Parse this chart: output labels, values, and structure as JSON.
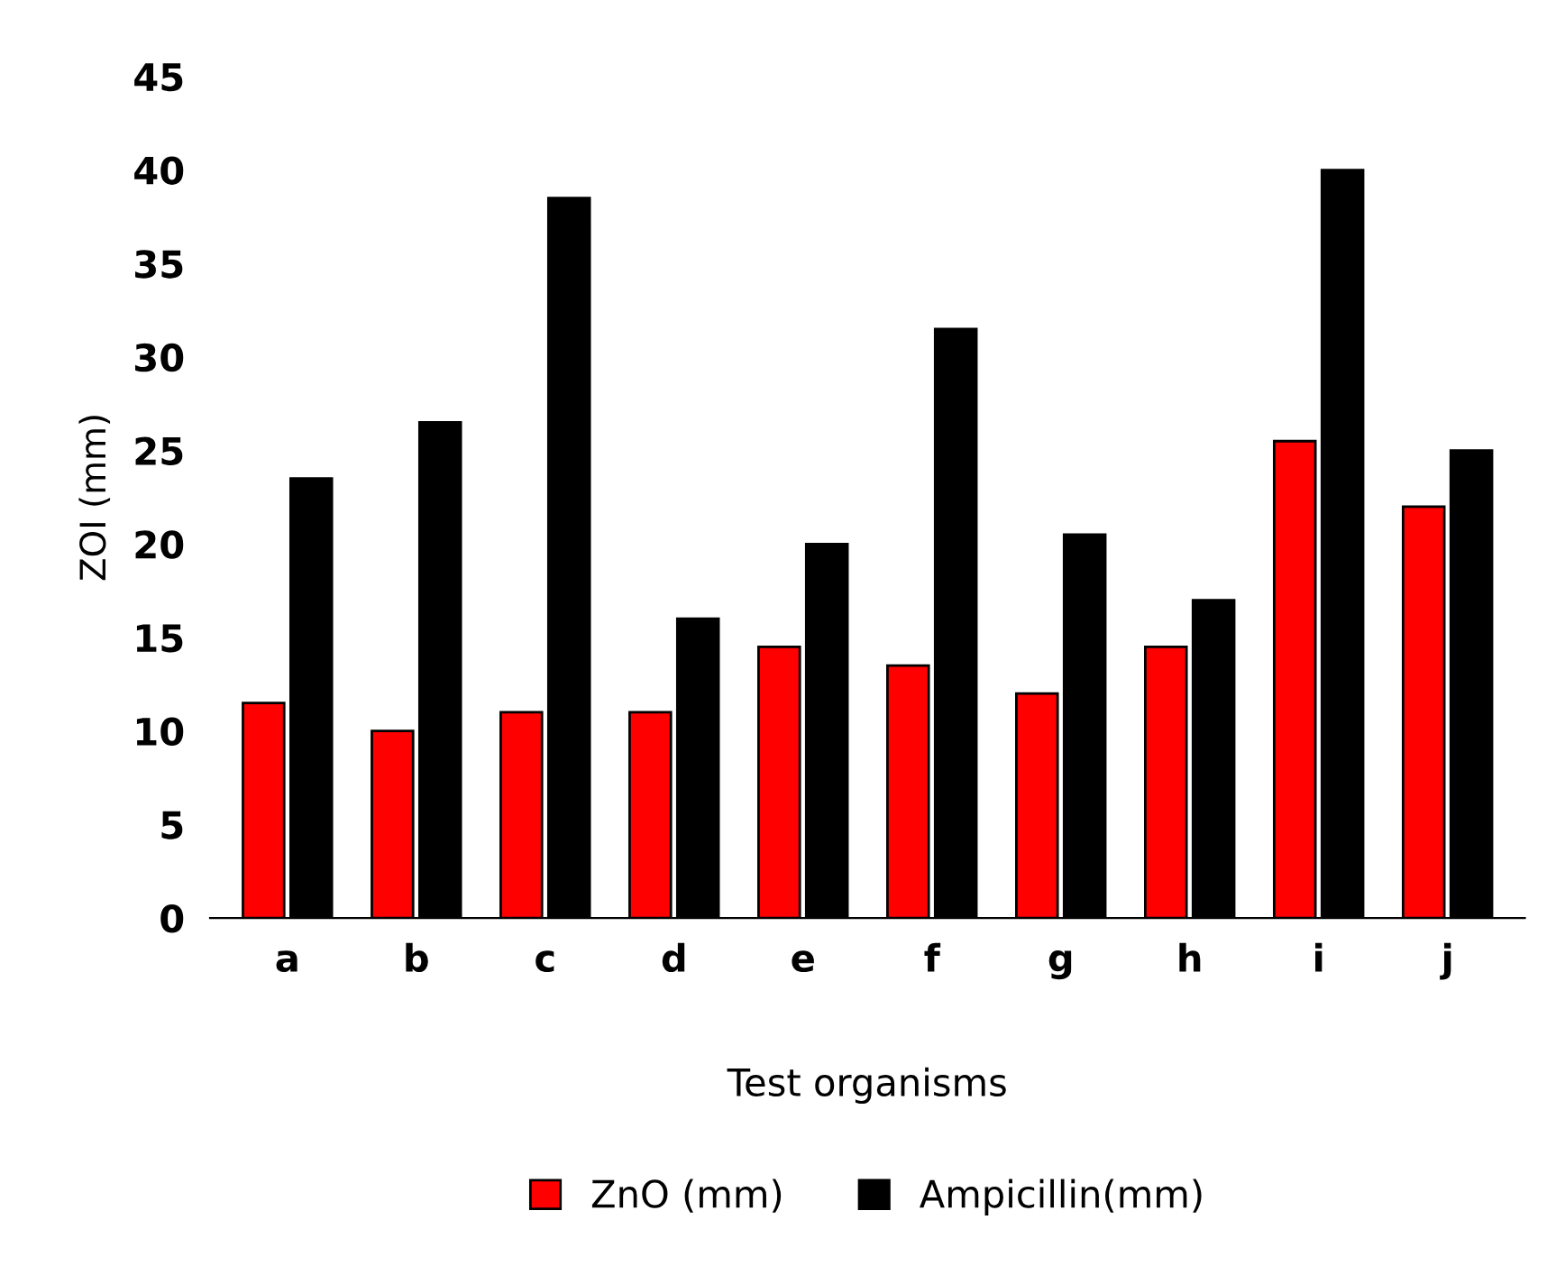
{
  "chart_data": {
    "type": "bar",
    "xlabel": "Test organisms",
    "ylabel": "ZOI (mm)",
    "categories": [
      "a",
      "b",
      "c",
      "d",
      "e",
      "f",
      "g",
      "h",
      "i",
      "j"
    ],
    "series": [
      {
        "name": "ZnO (mm)",
        "color": "#ff0000",
        "values": [
          11.5,
          10,
          11,
          11,
          14.5,
          13.5,
          12,
          14.5,
          25.5,
          22
        ]
      },
      {
        "name": "Ampicillin(mm)",
        "color": "#000000",
        "values": [
          23.5,
          26.5,
          38.5,
          16,
          20,
          31.5,
          20.5,
          17,
          40,
          25
        ]
      }
    ],
    "ylim": [
      0,
      45
    ],
    "yticks": [
      0,
      5,
      10,
      15,
      20,
      25,
      30,
      35,
      40,
      45
    ],
    "grid": false,
    "legend": "bottom"
  }
}
